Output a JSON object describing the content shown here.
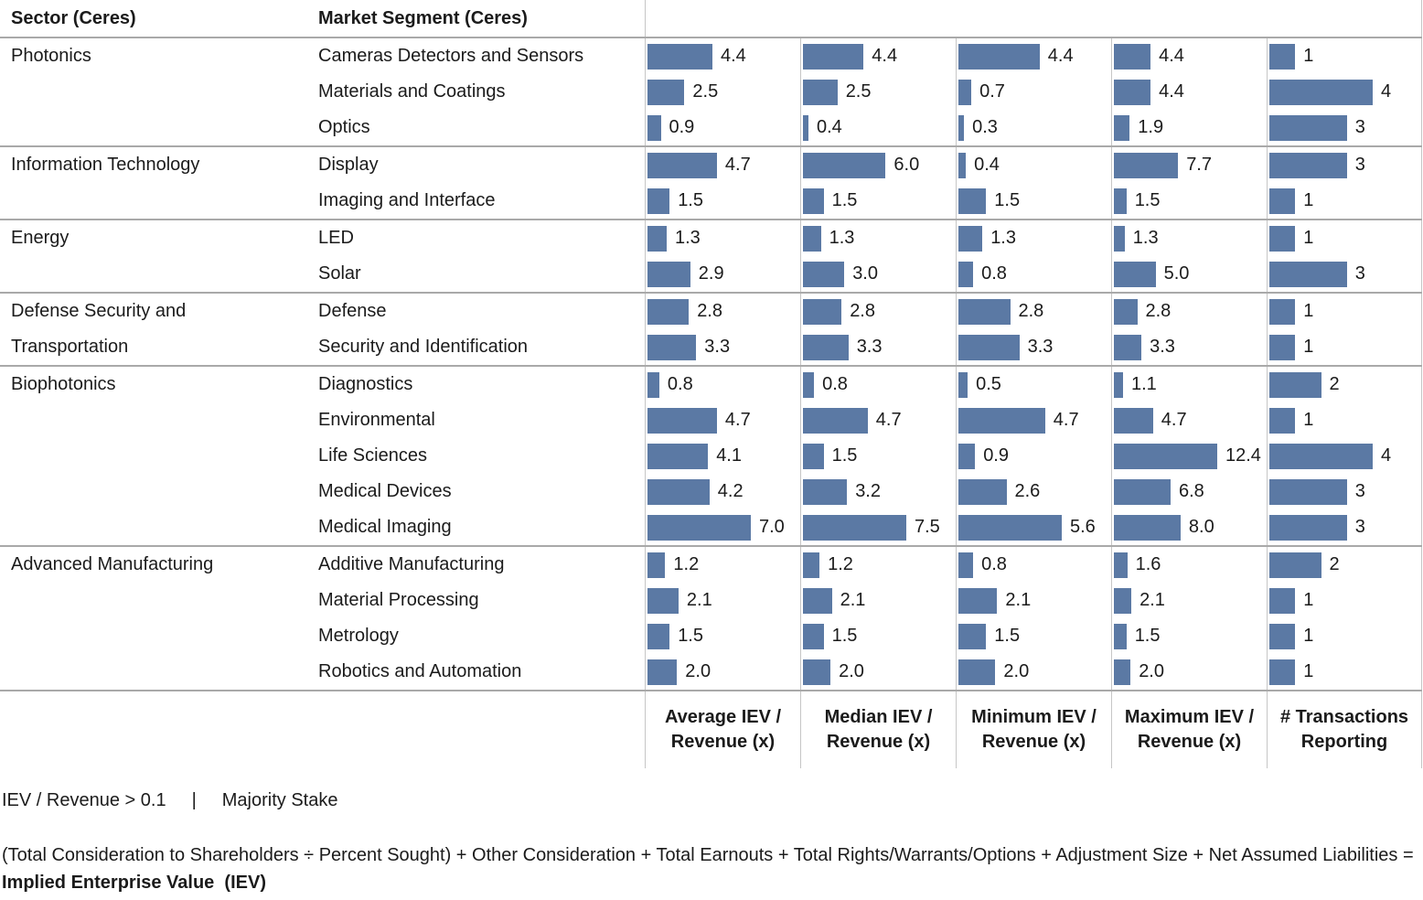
{
  "colors": {
    "bar": "#5b79a4",
    "grid_line": "#c6c6c6",
    "section_line": "#a9a9a9",
    "text": "#1b1b1b"
  },
  "table": {
    "sector_header": "Sector (Ceres)",
    "segment_header": "Market Segment (Ceres)"
  },
  "chart_data": {
    "type": "bar",
    "orientation": "horizontal",
    "legend": "none",
    "axis_note": "independent 0-to-max scale per measure column, value labels shown at bar ends",
    "measures": [
      "Average IEV /\nRevenue (x)",
      "Median IEV /\nRevenue (x)",
      "Minimum IEV /\nRevenue (x)",
      "Maximum IEV /\nRevenue (x)",
      "# Transactions\nReporting"
    ],
    "groups": [
      {
        "sector": "Photonics",
        "rows": [
          {
            "segment": "Cameras Detectors and Sensors",
            "values": [
              "4.4",
              "4.4",
              "4.4",
              "4.4",
              "1"
            ]
          },
          {
            "segment": "Materials and Coatings",
            "values": [
              "2.5",
              "2.5",
              "0.7",
              "4.4",
              "4"
            ]
          },
          {
            "segment": "Optics",
            "values": [
              "0.9",
              "0.4",
              "0.3",
              "1.9",
              "3"
            ]
          }
        ]
      },
      {
        "sector": "Information Technology",
        "rows": [
          {
            "segment": "Display",
            "values": [
              "4.7",
              "6.0",
              "0.4",
              "7.7",
              "3"
            ]
          },
          {
            "segment": "Imaging and Interface",
            "values": [
              "1.5",
              "1.5",
              "1.5",
              "1.5",
              "1"
            ]
          }
        ]
      },
      {
        "sector": "Energy",
        "rows": [
          {
            "segment": "LED",
            "values": [
              "1.3",
              "1.3",
              "1.3",
              "1.3",
              "1"
            ]
          },
          {
            "segment": "Solar",
            "values": [
              "2.9",
              "3.0",
              "0.8",
              "5.0",
              "3"
            ]
          }
        ]
      },
      {
        "sector": "Defense Security and Transportation",
        "rows": [
          {
            "segment": "Defense",
            "values": [
              "2.8",
              "2.8",
              "2.8",
              "2.8",
              "1"
            ]
          },
          {
            "segment": "Security and Identification",
            "values": [
              "3.3",
              "3.3",
              "3.3",
              "3.3",
              "1"
            ]
          }
        ]
      },
      {
        "sector": "Biophotonics",
        "rows": [
          {
            "segment": "Diagnostics",
            "values": [
              "0.8",
              "0.8",
              "0.5",
              "1.1",
              "2"
            ]
          },
          {
            "segment": "Environmental",
            "values": [
              "4.7",
              "4.7",
              "4.7",
              "4.7",
              "1"
            ]
          },
          {
            "segment": "Life Sciences",
            "values": [
              "4.1",
              "1.5",
              "0.9",
              "12.4",
              "4"
            ]
          },
          {
            "segment": "Medical Devices",
            "values": [
              "4.2",
              "3.2",
              "2.6",
              "6.8",
              "3"
            ]
          },
          {
            "segment": "Medical Imaging",
            "values": [
              "7.0",
              "7.5",
              "5.6",
              "8.0",
              "3"
            ]
          }
        ]
      },
      {
        "sector": "Advanced Manufacturing",
        "rows": [
          {
            "segment": "Additive Manufacturing",
            "values": [
              "1.2",
              "1.2",
              "0.8",
              "1.6",
              "2"
            ]
          },
          {
            "segment": "Material Processing",
            "values": [
              "2.1",
              "2.1",
              "2.1",
              "2.1",
              "1"
            ]
          },
          {
            "segment": "Metrology",
            "values": [
              "1.5",
              "1.5",
              "1.5",
              "1.5",
              "1"
            ]
          },
          {
            "segment": "Robotics and Automation",
            "values": [
              "2.0",
              "2.0",
              "2.0",
              "2.0",
              "1"
            ]
          }
        ]
      }
    ]
  },
  "footer": {
    "filter1": "IEV / Revenue > 0.1",
    "separator": "|",
    "filter2": "Majority Stake",
    "formula_text": "(Total Consideration to Shareholders ÷ Percent Sought) + Other Consideration + Total Earnouts + Total Rights/Warrants/Options + Adjustment Size + Net Assumed Liabilities = ",
    "formula_bold": "Implied Enterprise Value  (IEV)"
  }
}
